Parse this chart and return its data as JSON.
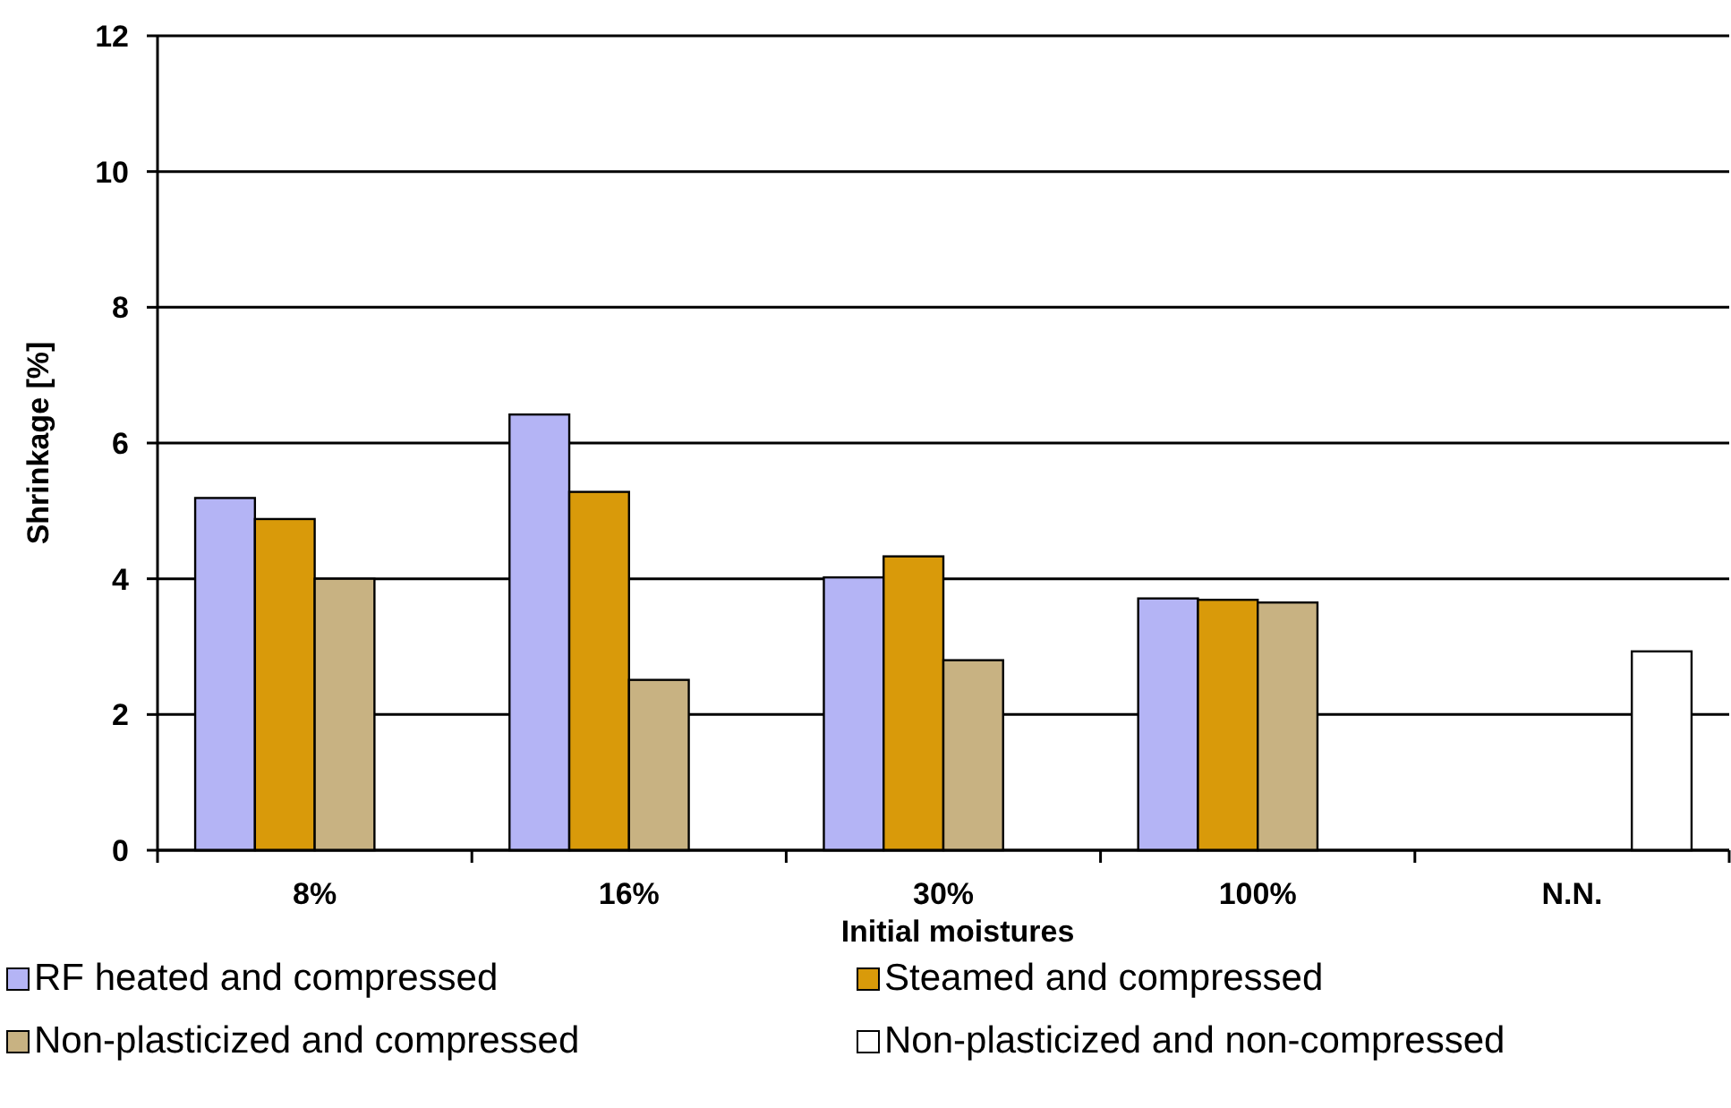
{
  "chart_data": {
    "type": "bar",
    "xlabel": "Initial moistures",
    "ylabel": "Shrinkage [%]",
    "categories": [
      "8%",
      "16%",
      "30%",
      "100%",
      "N.N."
    ],
    "series": [
      {
        "name": "RF heated and compressed",
        "color": "#b4b4f5",
        "values": [
          5.19,
          6.42,
          4.02,
          3.71,
          null
        ]
      },
      {
        "name": "Steamed and compressed",
        "color": "#d99a0a",
        "values": [
          4.88,
          5.28,
          4.33,
          3.69,
          null
        ]
      },
      {
        "name": "Non-plasticized and compressed",
        "color": "#c8b282",
        "values": [
          4.0,
          2.51,
          2.8,
          3.65,
          null
        ]
      },
      {
        "name": "Non-plasticized and non-compressed",
        "color": "#ffffff",
        "values": [
          null,
          null,
          null,
          null,
          2.93
        ]
      }
    ],
    "ylim": [
      0,
      12
    ],
    "yticks": [
      0,
      2,
      4,
      6,
      8,
      10,
      12
    ],
    "grid": "y",
    "legend": "bottom"
  }
}
